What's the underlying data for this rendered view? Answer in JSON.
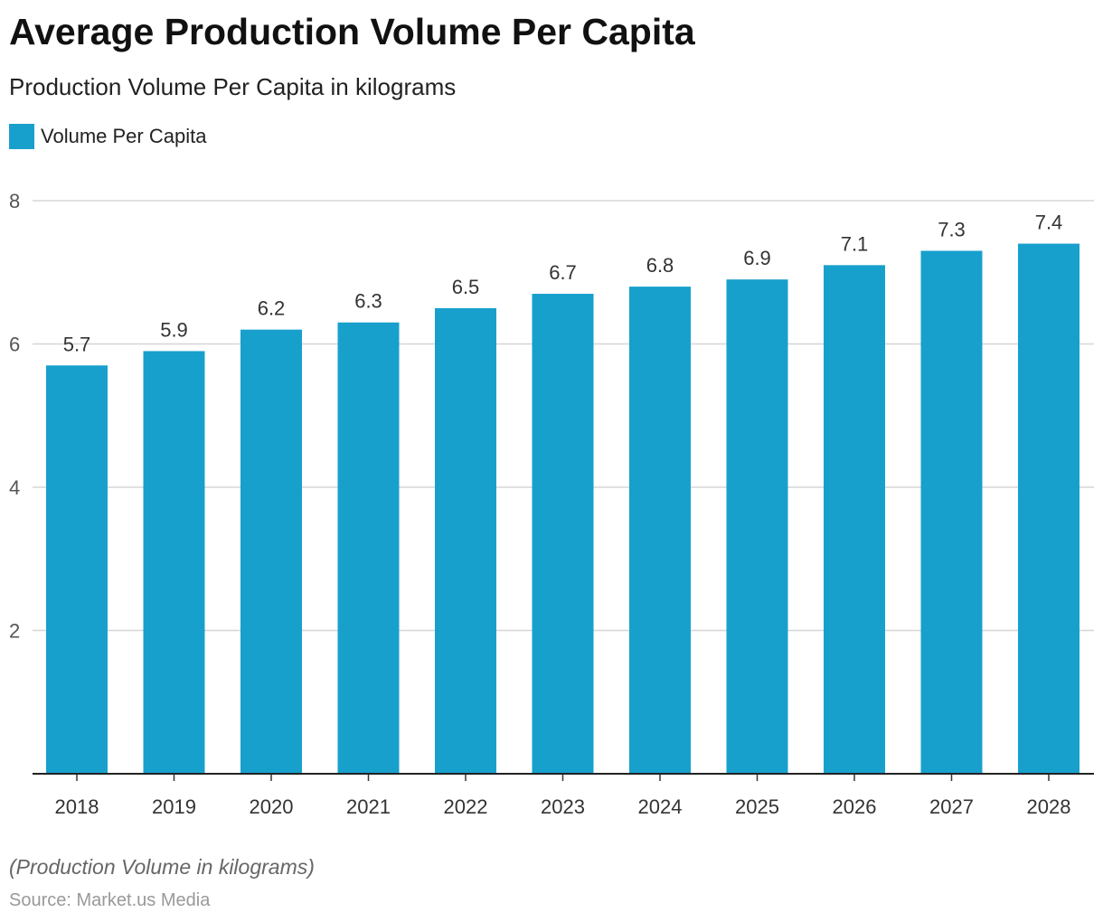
{
  "chart_data": {
    "type": "bar",
    "title": "Average Production Volume Per Capita",
    "subtitle": "Production Volume Per Capita in kilograms",
    "legend": [
      "Volume Per Capita"
    ],
    "legend_placement": "top-left",
    "categories": [
      "2018",
      "2019",
      "2020",
      "2021",
      "2022",
      "2023",
      "2024",
      "2025",
      "2026",
      "2027",
      "2028"
    ],
    "values": [
      5.7,
      5.9,
      6.2,
      6.3,
      6.5,
      6.7,
      6.8,
      6.9,
      7.1,
      7.3,
      7.4
    ],
    "labels": [
      "5.7",
      "5.9",
      "6.2",
      "6.3",
      "6.5",
      "6.7",
      "6.8",
      "6.9",
      "7.1",
      "7.3",
      "7.4"
    ],
    "yticks": [
      "2",
      "4",
      "6",
      "8"
    ],
    "ylim": [
      0,
      8
    ],
    "xlabel": "",
    "ylabel": "",
    "grid": true,
    "bar_color": "#18A0CD"
  },
  "footer": {
    "note": "(Production Volume in kilograms)",
    "source": "Source: Market.us Media"
  }
}
